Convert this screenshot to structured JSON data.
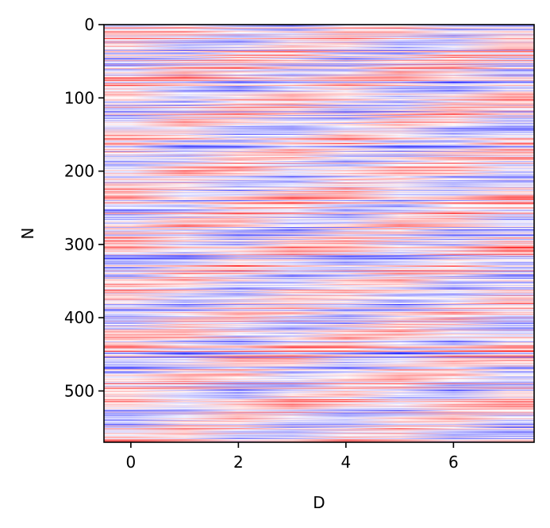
{
  "chart_data": {
    "type": "heatmap",
    "title": "",
    "xlabel": "D",
    "ylabel": "N",
    "x_tick_labels": [
      "0",
      "2",
      "4",
      "6"
    ],
    "x_ticks": [
      0,
      2,
      4,
      6
    ],
    "y_tick_labels": [
      "0",
      "100",
      "200",
      "300",
      "400",
      "500"
    ],
    "y_ticks": [
      0,
      100,
      200,
      300,
      400,
      500
    ],
    "xlim": [
      -0.5,
      7.5
    ],
    "ylim": [
      570,
      0
    ],
    "n_rows": 570,
    "n_cols": 8,
    "colormap": "bwr",
    "value_range": [
      -1,
      1
    ],
    "colors": {
      "low": "#0000ff",
      "mid": "#ffffff",
      "high": "#ff0000"
    },
    "grid": false,
    "legend": "none",
    "values_note_seed": 7
  }
}
